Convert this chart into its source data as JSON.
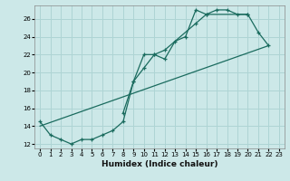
{
  "xlabel": "Humidex (Indice chaleur)",
  "bg_color": "#cce8e8",
  "grid_color": "#aed4d4",
  "line_color": "#1a6b5e",
  "xlim": [
    -0.5,
    23.5
  ],
  "ylim": [
    11.5,
    27.5
  ],
  "xticks": [
    0,
    1,
    2,
    3,
    4,
    5,
    6,
    7,
    8,
    9,
    10,
    11,
    12,
    13,
    14,
    15,
    16,
    17,
    18,
    19,
    20,
    21,
    22,
    23
  ],
  "yticks": [
    12,
    14,
    16,
    18,
    20,
    22,
    24,
    26
  ],
  "line1_x": [
    0,
    1,
    2,
    3,
    4,
    5,
    6,
    7,
    8,
    9,
    10,
    11,
    12,
    13,
    14,
    15,
    16,
    17,
    18,
    19,
    20,
    21,
    22
  ],
  "line1_y": [
    14.5,
    13.0,
    12.5,
    12.0,
    12.5,
    12.5,
    13.0,
    13.5,
    14.5,
    19.0,
    20.5,
    22.0,
    21.5,
    23.5,
    24.0,
    27.0,
    26.5,
    27.0,
    27.0,
    26.5,
    26.5,
    24.5,
    23.0
  ],
  "line2_x": [
    8,
    9,
    10,
    11,
    12,
    15,
    16,
    20
  ],
  "line2_y": [
    15.5,
    19.0,
    22.0,
    22.0,
    22.5,
    25.5,
    26.5,
    26.5
  ],
  "line3_x": [
    0,
    22
  ],
  "line3_y": [
    14.0,
    23.0
  ]
}
